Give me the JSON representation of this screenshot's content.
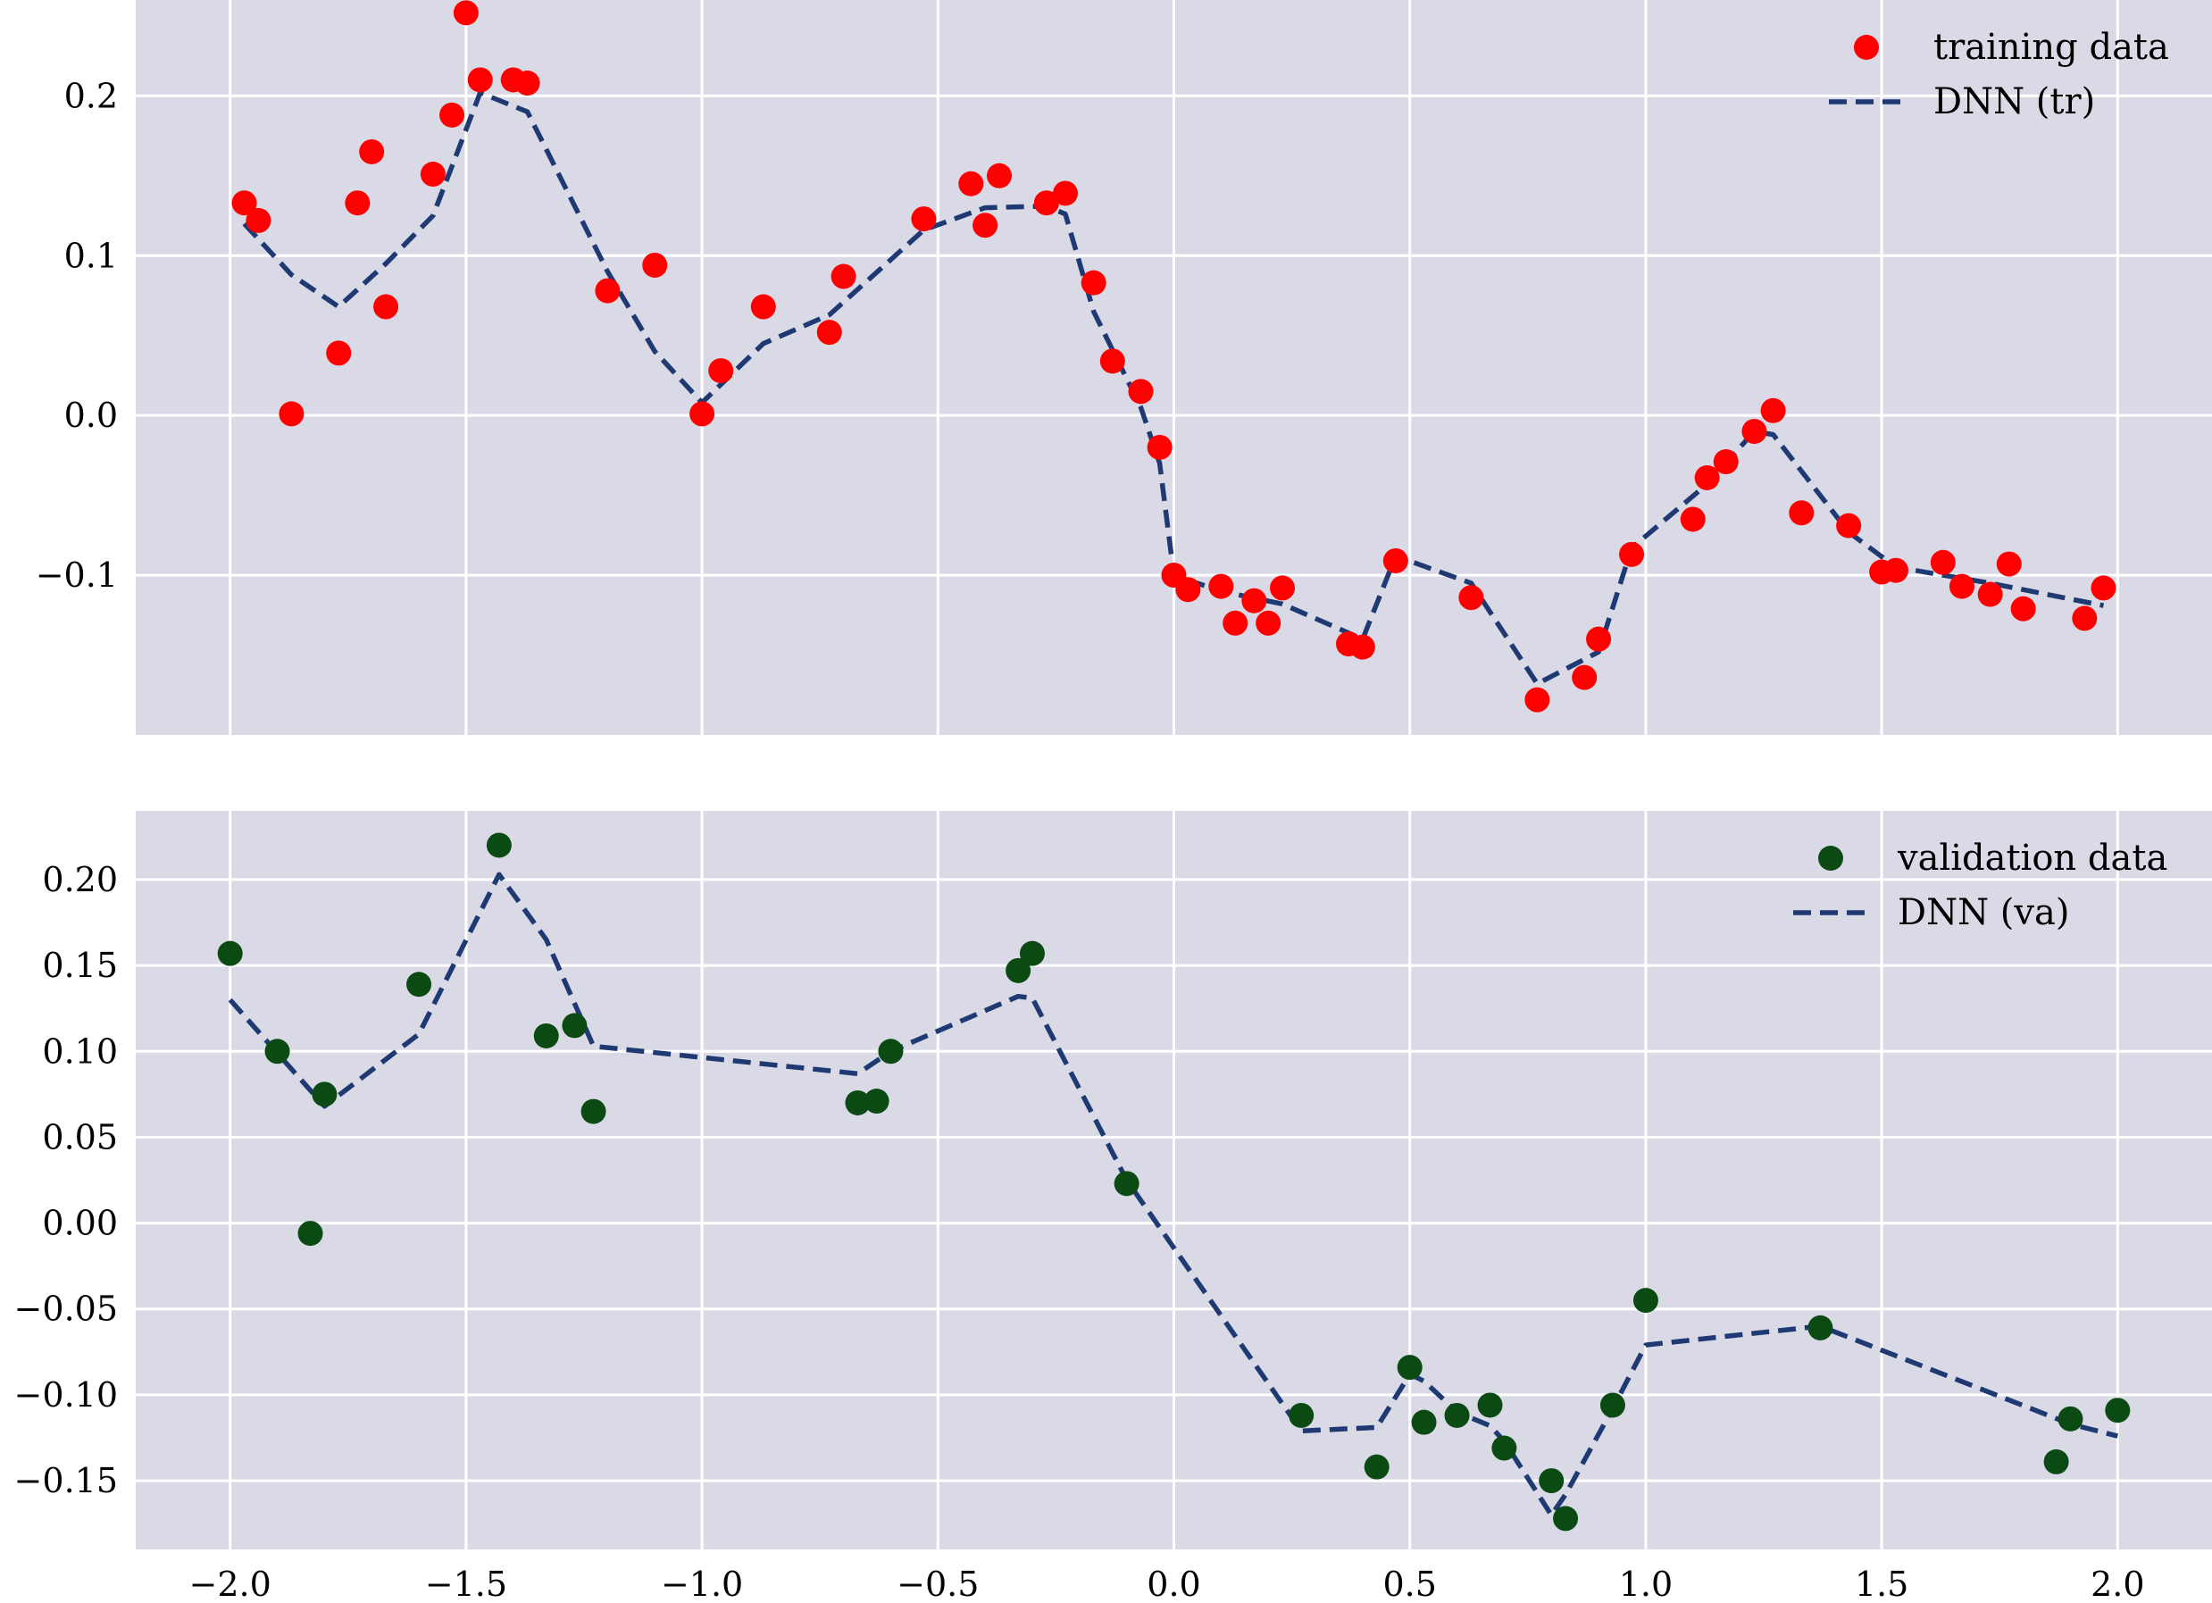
{
  "colors": {
    "plot_bg": "#dadae6",
    "grid": "#ffffff",
    "training_marker": "#ff0000",
    "validation_marker": "#0b4a12",
    "dnn_line": "#1f3a73"
  },
  "chart_data": [
    {
      "type": "scatter",
      "title": "",
      "xlabel": "",
      "ylabel": "",
      "xlim": [
        -2.2,
        2.2
      ],
      "ylim": [
        -0.2,
        0.26
      ],
      "xticks": [
        -2.0,
        -1.5,
        -1.0,
        -0.5,
        0.0,
        0.5,
        1.0,
        1.5,
        2.0
      ],
      "yticks": [
        -0.1,
        0.0,
        0.1,
        0.2
      ],
      "ytick_labels": [
        "−0.1",
        "0.0",
        "0.1",
        "0.2"
      ],
      "grid": true,
      "legend_position": "top-right",
      "series": [
        {
          "name": "training data",
          "kind": "points",
          "color": "#ff0000",
          "x": [
            -1.97,
            -1.94,
            -1.87,
            -1.77,
            -1.73,
            -1.7,
            -1.67,
            -1.57,
            -1.53,
            -1.5,
            -1.47,
            -1.4,
            -1.37,
            -1.2,
            -1.1,
            -1.0,
            -0.96,
            -0.87,
            -0.73,
            -0.7,
            -0.53,
            -0.43,
            -0.4,
            -0.37,
            -0.27,
            -0.23,
            -0.17,
            -0.13,
            -0.07,
            -0.03,
            0.0,
            0.03,
            0.1,
            0.13,
            0.17,
            0.2,
            0.23,
            0.37,
            0.4,
            0.47,
            0.63,
            0.77,
            0.87,
            0.9,
            0.97,
            1.1,
            1.13,
            1.17,
            1.23,
            1.27,
            1.33,
            1.43,
            1.5,
            1.53,
            1.63,
            1.67,
            1.73,
            1.77,
            1.8,
            1.93,
            1.97
          ],
          "y": [
            0.133,
            0.122,
            0.001,
            0.039,
            0.133,
            0.165,
            0.068,
            0.151,
            0.188,
            0.252,
            0.21,
            0.21,
            0.208,
            0.078,
            0.094,
            0.001,
            0.028,
            0.068,
            0.052,
            0.087,
            0.123,
            0.145,
            0.119,
            0.15,
            0.133,
            0.139,
            0.083,
            0.034,
            0.015,
            -0.02,
            -0.1,
            -0.109,
            -0.107,
            -0.13,
            -0.116,
            -0.13,
            -0.108,
            -0.143,
            -0.145,
            -0.091,
            -0.114,
            -0.178,
            -0.164,
            -0.14,
            -0.087,
            -0.065,
            -0.039,
            -0.029,
            -0.01,
            0.003,
            -0.061,
            -0.069,
            -0.098,
            -0.097,
            -0.092,
            -0.107,
            -0.112,
            -0.093,
            -0.121,
            -0.127,
            -0.108
          ]
        },
        {
          "name": "DNN (tr)",
          "kind": "dashed-line",
          "color": "#1f3a73",
          "x": [
            -1.97,
            -1.87,
            -1.77,
            -1.67,
            -1.57,
            -1.47,
            -1.37,
            -1.2,
            -1.1,
            -1.0,
            -0.87,
            -0.73,
            -0.53,
            -0.4,
            -0.27,
            -0.23,
            -0.17,
            -0.07,
            -0.03,
            0.0,
            0.1,
            0.23,
            0.4,
            0.47,
            0.63,
            0.77,
            0.9,
            0.97,
            1.13,
            1.23,
            1.27,
            1.43,
            1.53,
            1.73,
            1.97
          ],
          "y": [
            0.12,
            0.088,
            0.068,
            0.095,
            0.125,
            0.202,
            0.19,
            0.09,
            0.04,
            0.008,
            0.045,
            0.063,
            0.116,
            0.13,
            0.131,
            0.126,
            0.065,
            0.005,
            -0.03,
            -0.1,
            -0.11,
            -0.118,
            -0.14,
            -0.088,
            -0.105,
            -0.168,
            -0.148,
            -0.083,
            -0.043,
            -0.01,
            -0.012,
            -0.073,
            -0.095,
            -0.105,
            -0.119
          ]
        }
      ]
    },
    {
      "type": "scatter",
      "title": "",
      "xlabel": "",
      "ylabel": "",
      "xlim": [
        -2.2,
        2.2
      ],
      "ylim": [
        -0.19,
        0.24
      ],
      "xticks": [
        -2.0,
        -1.5,
        -1.0,
        -0.5,
        0.0,
        0.5,
        1.0,
        1.5,
        2.0
      ],
      "xtick_labels": [
        "−2.0",
        "−1.5",
        "−1.0",
        "−0.5",
        "0.0",
        "0.5",
        "1.0",
        "1.5",
        "2.0"
      ],
      "yticks": [
        -0.15,
        -0.1,
        -0.05,
        0.0,
        0.05,
        0.1,
        0.15,
        0.2
      ],
      "ytick_labels": [
        "−0.15",
        "−0.10",
        "−0.05",
        "0.00",
        "0.05",
        "0.10",
        "0.15",
        "0.20"
      ],
      "grid": true,
      "legend_position": "top-right",
      "series": [
        {
          "name": "validation data",
          "kind": "points",
          "color": "#0b4a12",
          "x": [
            -2.0,
            -1.9,
            -1.83,
            -1.8,
            -1.6,
            -1.43,
            -1.33,
            -1.27,
            -1.23,
            -0.67,
            -0.63,
            -0.6,
            -0.33,
            -0.3,
            -0.1,
            0.27,
            0.43,
            0.5,
            0.53,
            0.6,
            0.67,
            0.7,
            0.8,
            0.83,
            0.93,
            1.0,
            1.37,
            1.87,
            1.9,
            2.0
          ],
          "y": [
            0.157,
            0.1,
            -0.006,
            0.075,
            0.139,
            0.22,
            0.109,
            0.115,
            0.065,
            0.07,
            0.071,
            0.1,
            0.147,
            0.157,
            0.023,
            -0.112,
            -0.142,
            -0.084,
            -0.116,
            -0.112,
            -0.106,
            -0.131,
            -0.15,
            -0.172,
            -0.106,
            -0.045,
            -0.061,
            -0.139,
            -0.114,
            -0.109
          ]
        },
        {
          "name": "DNN (va)",
          "kind": "dashed-line",
          "color": "#1f3a73",
          "x": [
            -2.0,
            -1.8,
            -1.6,
            -1.43,
            -1.33,
            -1.23,
            -0.67,
            -0.6,
            -0.33,
            -0.3,
            -0.1,
            0.27,
            0.43,
            0.5,
            0.53,
            0.6,
            0.67,
            0.7,
            0.8,
            0.83,
            0.93,
            1.0,
            1.37,
            1.9,
            2.0
          ],
          "y": [
            0.13,
            0.068,
            0.11,
            0.203,
            0.165,
            0.103,
            0.087,
            0.1,
            0.132,
            0.131,
            0.025,
            -0.121,
            -0.119,
            -0.088,
            -0.092,
            -0.11,
            -0.118,
            -0.127,
            -0.17,
            -0.158,
            -0.108,
            -0.071,
            -0.06,
            -0.117,
            -0.124
          ]
        }
      ]
    }
  ]
}
